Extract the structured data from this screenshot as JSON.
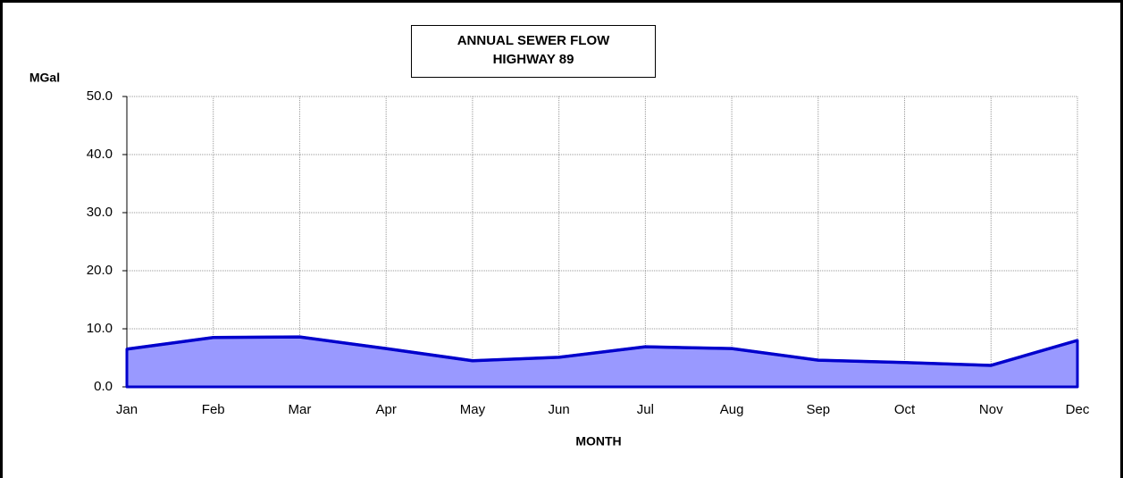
{
  "chart_data": {
    "type": "area",
    "title": [
      "ANNUAL SEWER FLOW",
      "HIGHWAY 89"
    ],
    "y_label": "MGal",
    "x_label": "MONTH",
    "categories": [
      "Jan",
      "Feb",
      "Mar",
      "Apr",
      "May",
      "Jun",
      "Jul",
      "Aug",
      "Sep",
      "Oct",
      "Nov",
      "Dec"
    ],
    "values": [
      6.5,
      8.5,
      8.6,
      6.6,
      4.5,
      5.1,
      6.9,
      6.6,
      4.6,
      4.2,
      3.7,
      8.0
    ],
    "color": "#9999ff",
    "line_color": "#0000cc",
    "ylim": [
      0,
      50
    ],
    "yticks": [
      {
        "value": 0,
        "label": "0.0"
      },
      {
        "value": 10,
        "label": "10.0"
      },
      {
        "value": 20,
        "label": "20.0"
      },
      {
        "value": 30,
        "label": "30.0"
      },
      {
        "value": 40,
        "label": "40.0"
      },
      {
        "value": 50,
        "label": "50.0"
      }
    ],
    "grid": true
  }
}
